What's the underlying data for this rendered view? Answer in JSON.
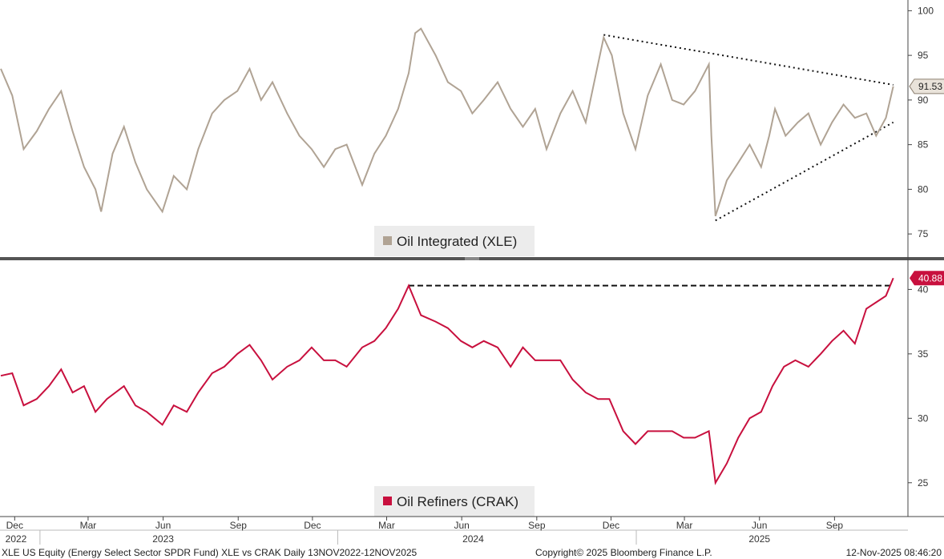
{
  "chart_data": [
    {
      "type": "line",
      "panel": "top",
      "legend": "Oil Integrated (XLE)",
      "color": "#b0a394",
      "y_ticks": [
        75,
        80,
        85,
        90,
        95,
        100
      ],
      "ylim": [
        72.5,
        101.2
      ],
      "last_value_label": "91.53",
      "series": [
        {
          "name": "Oil Integrated (XLE)",
          "points": [
            [
              "2022-11-14",
              93.5
            ],
            [
              "2022-11-28",
              90.5
            ],
            [
              "2022-12-12",
              84.5
            ],
            [
              "2022-12-28",
              86.5
            ],
            [
              "2023-01-12",
              89
            ],
            [
              "2023-01-27",
              91
            ],
            [
              "2023-02-10",
              86.5
            ],
            [
              "2023-02-24",
              82.5
            ],
            [
              "2023-03-10",
              80
            ],
            [
              "2023-03-17",
              77.5
            ],
            [
              "2023-03-31",
              84
            ],
            [
              "2023-04-14",
              87
            ],
            [
              "2023-04-28",
              83
            ],
            [
              "2023-05-12",
              80
            ],
            [
              "2023-05-31",
              77.5
            ],
            [
              "2023-06-14",
              81.5
            ],
            [
              "2023-06-30",
              80
            ],
            [
              "2023-07-14",
              84.5
            ],
            [
              "2023-07-31",
              88.5
            ],
            [
              "2023-08-15",
              90
            ],
            [
              "2023-08-31",
              91
            ],
            [
              "2023-09-15",
              93.5
            ],
            [
              "2023-09-29",
              90
            ],
            [
              "2023-10-13",
              92
            ],
            [
              "2023-10-31",
              88.5
            ],
            [
              "2023-11-15",
              86
            ],
            [
              "2023-11-30",
              84.5
            ],
            [
              "2023-12-15",
              82.5
            ],
            [
              "2023-12-29",
              84.5
            ],
            [
              "2024-01-12",
              85
            ],
            [
              "2024-01-31",
              80.5
            ],
            [
              "2024-02-15",
              84
            ],
            [
              "2024-02-29",
              86
            ],
            [
              "2024-03-15",
              89
            ],
            [
              "2024-03-28",
              93
            ],
            [
              "2024-04-05",
              97.5
            ],
            [
              "2024-04-12",
              98
            ],
            [
              "2024-04-30",
              95
            ],
            [
              "2024-05-15",
              92
            ],
            [
              "2024-05-31",
              91
            ],
            [
              "2024-06-14",
              88.5
            ],
            [
              "2024-06-28",
              90
            ],
            [
              "2024-07-15",
              92
            ],
            [
              "2024-07-31",
              89
            ],
            [
              "2024-08-15",
              87
            ],
            [
              "2024-08-30",
              89
            ],
            [
              "2024-09-13",
              84.5
            ],
            [
              "2024-09-30",
              88.5
            ],
            [
              "2024-10-15",
              91
            ],
            [
              "2024-10-31",
              87.5
            ],
            [
              "2024-11-15",
              94
            ],
            [
              "2024-11-22",
              97
            ],
            [
              "2024-12-02",
              95
            ],
            [
              "2024-12-16",
              88.5
            ],
            [
              "2024-12-31",
              84.5
            ],
            [
              "2025-01-15",
              90.5
            ],
            [
              "2025-01-31",
              94
            ],
            [
              "2025-02-14",
              90
            ],
            [
              "2025-02-28",
              89.5
            ],
            [
              "2025-03-14",
              91
            ],
            [
              "2025-03-31",
              94
            ],
            [
              "2025-04-03",
              86
            ],
            [
              "2025-04-08",
              77
            ],
            [
              "2025-04-22",
              81
            ],
            [
              "2025-05-06",
              83
            ],
            [
              "2025-05-20",
              85
            ],
            [
              "2025-06-03",
              82.5
            ],
            [
              "2025-06-13",
              86
            ],
            [
              "2025-06-20",
              89
            ],
            [
              "2025-07-03",
              86
            ],
            [
              "2025-07-18",
              87.5
            ],
            [
              "2025-07-31",
              88.5
            ],
            [
              "2025-08-15",
              85
            ],
            [
              "2025-08-29",
              87.5
            ],
            [
              "2025-09-12",
              89.5
            ],
            [
              "2025-09-26",
              88
            ],
            [
              "2025-10-10",
              88.5
            ],
            [
              "2025-10-22",
              86
            ],
            [
              "2025-11-03",
              88
            ],
            [
              "2025-11-12",
              91.53
            ]
          ]
        }
      ],
      "trendlines": [
        {
          "style": "dotted",
          "from": [
            "2024-11-22",
            97.3
          ],
          "to": [
            "2025-11-12",
            91.7
          ]
        },
        {
          "style": "dotted",
          "from": [
            "2025-04-08",
            76.5
          ],
          "to": [
            "2025-11-12",
            87.5
          ]
        }
      ]
    },
    {
      "type": "line",
      "panel": "bottom",
      "legend": "Oil Refiners (CRAK)",
      "color": "#c8103e",
      "y_ticks": [
        25,
        30,
        35,
        40
      ],
      "ylim": [
        22.5,
        42.2
      ],
      "last_value_label": "40.88",
      "series": [
        {
          "name": "Oil Refiners (CRAK)",
          "points": [
            [
              "2022-11-14",
              33.3
            ],
            [
              "2022-11-28",
              33.5
            ],
            [
              "2022-12-12",
              31
            ],
            [
              "2022-12-28",
              31.5
            ],
            [
              "2023-01-12",
              32.5
            ],
            [
              "2023-01-27",
              33.8
            ],
            [
              "2023-02-10",
              32
            ],
            [
              "2023-02-24",
              32.5
            ],
            [
              "2023-03-10",
              30.5
            ],
            [
              "2023-03-24",
              31.5
            ],
            [
              "2023-04-14",
              32.5
            ],
            [
              "2023-04-28",
              31
            ],
            [
              "2023-05-12",
              30.5
            ],
            [
              "2023-05-31",
              29.5
            ],
            [
              "2023-06-14",
              31
            ],
            [
              "2023-06-30",
              30.5
            ],
            [
              "2023-07-14",
              32
            ],
            [
              "2023-07-31",
              33.5
            ],
            [
              "2023-08-15",
              34
            ],
            [
              "2023-08-31",
              35
            ],
            [
              "2023-09-15",
              35.7
            ],
            [
              "2023-09-29",
              34.5
            ],
            [
              "2023-10-13",
              33
            ],
            [
              "2023-10-31",
              34
            ],
            [
              "2023-11-15",
              34.5
            ],
            [
              "2023-11-30",
              35.5
            ],
            [
              "2023-12-15",
              34.5
            ],
            [
              "2023-12-29",
              34.5
            ],
            [
              "2024-01-12",
              34
            ],
            [
              "2024-01-31",
              35.5
            ],
            [
              "2024-02-15",
              36
            ],
            [
              "2024-02-29",
              37
            ],
            [
              "2024-03-15",
              38.5
            ],
            [
              "2024-03-28",
              40.3
            ],
            [
              "2024-04-12",
              38
            ],
            [
              "2024-04-30",
              37.5
            ],
            [
              "2024-05-15",
              37
            ],
            [
              "2024-05-31",
              36
            ],
            [
              "2024-06-14",
              35.5
            ],
            [
              "2024-06-28",
              36
            ],
            [
              "2024-07-15",
              35.5
            ],
            [
              "2024-07-31",
              34
            ],
            [
              "2024-08-15",
              35.5
            ],
            [
              "2024-08-30",
              34.5
            ],
            [
              "2024-09-13",
              34.5
            ],
            [
              "2024-09-30",
              34.5
            ],
            [
              "2024-10-15",
              33
            ],
            [
              "2024-10-31",
              32
            ],
            [
              "2024-11-15",
              31.5
            ],
            [
              "2024-11-29",
              31.5
            ],
            [
              "2024-12-16",
              29
            ],
            [
              "2024-12-31",
              28
            ],
            [
              "2025-01-15",
              29
            ],
            [
              "2025-01-31",
              29
            ],
            [
              "2025-02-14",
              29
            ],
            [
              "2025-02-28",
              28.5
            ],
            [
              "2025-03-14",
              28.5
            ],
            [
              "2025-03-31",
              29
            ],
            [
              "2025-04-04",
              27
            ],
            [
              "2025-04-08",
              25
            ],
            [
              "2025-04-22",
              26.5
            ],
            [
              "2025-05-06",
              28.5
            ],
            [
              "2025-05-20",
              30
            ],
            [
              "2025-06-03",
              30.5
            ],
            [
              "2025-06-17",
              32.5
            ],
            [
              "2025-07-01",
              34
            ],
            [
              "2025-07-15",
              34.5
            ],
            [
              "2025-07-31",
              34
            ],
            [
              "2025-08-15",
              35
            ],
            [
              "2025-08-29",
              36
            ],
            [
              "2025-09-12",
              36.8
            ],
            [
              "2025-09-26",
              35.8
            ],
            [
              "2025-10-10",
              38.5
            ],
            [
              "2025-10-22",
              39
            ],
            [
              "2025-11-03",
              39.5
            ],
            [
              "2025-11-12",
              40.88
            ]
          ]
        }
      ],
      "reference_lines": [
        {
          "style": "dashed",
          "y": 40.3,
          "from": "2024-03-28",
          "to": "2025-11-12"
        }
      ]
    }
  ],
  "x_axis": {
    "start": "2022-11-13",
    "end": "2025-11-30",
    "month_ticks": [
      {
        "label": "Dec",
        "date": "2022-12-01"
      },
      {
        "label": "Mar",
        "date": "2023-03-01"
      },
      {
        "label": "Jun",
        "date": "2023-06-01"
      },
      {
        "label": "Sep",
        "date": "2023-09-01"
      },
      {
        "label": "Dec",
        "date": "2023-12-01"
      },
      {
        "label": "Mar",
        "date": "2024-03-01"
      },
      {
        "label": "Jun",
        "date": "2024-06-01"
      },
      {
        "label": "Sep",
        "date": "2024-09-01"
      },
      {
        "label": "Dec",
        "date": "2024-12-01"
      },
      {
        "label": "Mar",
        "date": "2025-03-01"
      },
      {
        "label": "Jun",
        "date": "2025-06-01"
      },
      {
        "label": "Sep",
        "date": "2025-09-01"
      }
    ],
    "year_labels": [
      {
        "label": "2022",
        "date": "2022-11-25"
      },
      {
        "label": "2023",
        "date": "2023-06-01"
      },
      {
        "label": "2024",
        "date": "2024-06-15"
      },
      {
        "label": "2025",
        "date": "2025-06-01"
      }
    ]
  },
  "footer": {
    "description": "XLE US Equity (Energy Select Sector SPDR Fund) XLE vs CRAK Daily 13NOV2022-12NOV2025",
    "copyright": "Copyright© 2025 Bloomberg Finance L.P.",
    "timestamp": "12-Nov-2025 08:46:20"
  }
}
